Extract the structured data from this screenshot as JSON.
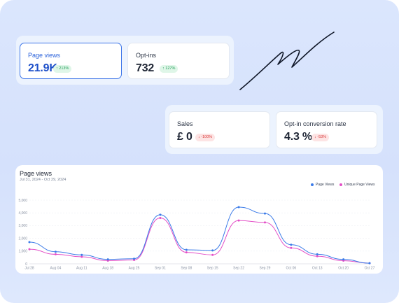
{
  "metrics": {
    "page_views": {
      "label": "Page views",
      "value": "21.9K",
      "change": "↑ 213%"
    },
    "opt_ins": {
      "label": "Opt-ins",
      "value": "732",
      "change": "↑ 127%"
    },
    "sales": {
      "label": "Sales",
      "value": "£ 0",
      "change": "↓ -100%"
    },
    "conversion": {
      "label": "Opt-in conversion rate",
      "value": "4.3 %",
      "change": "↓ -53%"
    }
  },
  "chart": {
    "title": "Page views",
    "date_range": "Jul 31, 2024 - Oct 29, 2024",
    "legend_page_views": "Page Views",
    "legend_unique": "Unique Page Views",
    "colors": {
      "page_views": "#3b7be8",
      "unique": "#e34fc7"
    }
  },
  "chart_data": {
    "type": "line",
    "x": [
      "Jul 28",
      "Aug 04",
      "Aug 11",
      "Aug 18",
      "Aug 25",
      "Sep 01",
      "Sep 08",
      "Sep 15",
      "Sep 22",
      "Sep 29",
      "Oct 06",
      "Oct 13",
      "Oct 20",
      "Oct 27"
    ],
    "ytick_labels": [
      "0",
      "1,000",
      "2,000",
      "3,000",
      "4,000",
      "5,000"
    ],
    "ylim": [
      0,
      5000
    ],
    "series": [
      {
        "name": "Page Views",
        "values": [
          1700,
          950,
          700,
          350,
          400,
          3850,
          1100,
          1050,
          4450,
          3950,
          1500,
          750,
          350,
          50
        ]
      },
      {
        "name": "Unique Page Views",
        "values": [
          1150,
          750,
          550,
          250,
          300,
          3600,
          900,
          700,
          3400,
          3250,
          1250,
          600,
          250,
          50
        ]
      }
    ],
    "grid": true,
    "legend": "top-right"
  }
}
